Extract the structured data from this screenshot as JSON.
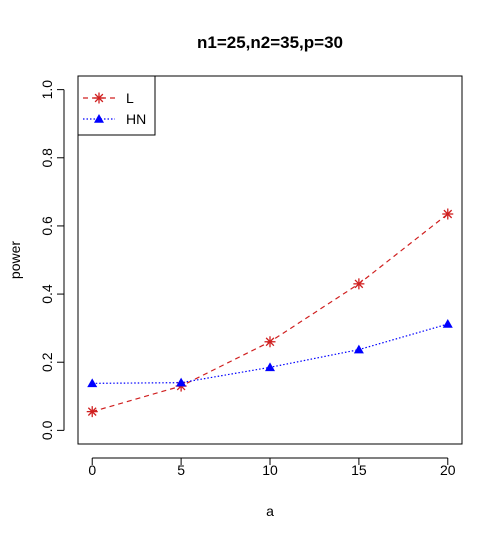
{
  "chart_data": {
    "type": "line",
    "title": "n1=25,n2=35,p=30",
    "xlabel": "a",
    "ylabel": "power",
    "x": [
      0,
      5,
      10,
      15,
      20
    ],
    "xlim": [
      -0.8,
      20.8
    ],
    "ylim": [
      -0.04,
      1.04
    ],
    "x_ticks": [
      "0",
      "5",
      "10",
      "15",
      "20"
    ],
    "y_ticks": [
      "0.0",
      "0.2",
      "0.4",
      "0.6",
      "0.8",
      "1.0"
    ],
    "grid": false,
    "legend_position": "top-left",
    "series": [
      {
        "name": "L",
        "values": [
          0.055,
          0.13,
          0.26,
          0.43,
          0.635
        ],
        "color": "#d02020",
        "marker": "asterisk",
        "line": "dashed"
      },
      {
        "name": "HN",
        "values": [
          0.138,
          0.14,
          0.185,
          0.237,
          0.312
        ],
        "color": "#0000ff",
        "marker": "triangle",
        "line": "dotted"
      }
    ]
  }
}
